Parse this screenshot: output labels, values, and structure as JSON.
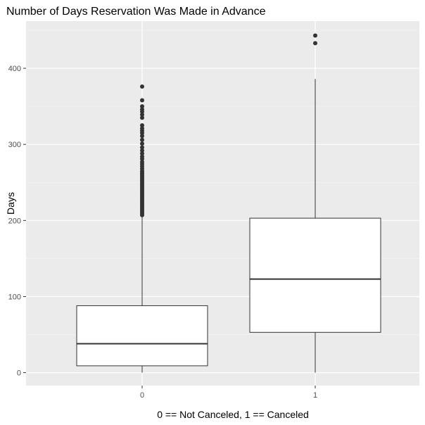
{
  "chart_data": {
    "type": "boxplot",
    "title": "Number of Days Reservation Was Made in Advance",
    "xlabel": "0 == Not Canceled, 1 == Canceled",
    "ylabel": "Days",
    "categories": [
      "0",
      "1"
    ],
    "ylim": [
      -17,
      462
    ],
    "yticks": [
      0,
      100,
      200,
      300,
      400
    ],
    "grid": true,
    "background": "#EBEBEB",
    "box_fill": "#FFFFFF",
    "box_stroke": "#333333",
    "outlier_color": "#333333",
    "boxes": [
      {
        "category": "0",
        "min": 0,
        "q1": 9,
        "median": 38,
        "q3": 88,
        "max": 206,
        "outliers": [
          207,
          209,
          211,
          213,
          215,
          217,
          219,
          221,
          223,
          225,
          227,
          229,
          231,
          233,
          235,
          237,
          239,
          241,
          243,
          245,
          247,
          249,
          251,
          253,
          255,
          257,
          259,
          261,
          263,
          265,
          268,
          271,
          274,
          277,
          281,
          284,
          288,
          292,
          296,
          301,
          306,
          311,
          315,
          318,
          321,
          325,
          335,
          339,
          343,
          346,
          350,
          358,
          376
        ]
      },
      {
        "category": "1",
        "min": 0,
        "q1": 53,
        "median": 123,
        "q3": 203,
        "max": 386,
        "outliers": [
          433,
          443
        ]
      }
    ]
  }
}
